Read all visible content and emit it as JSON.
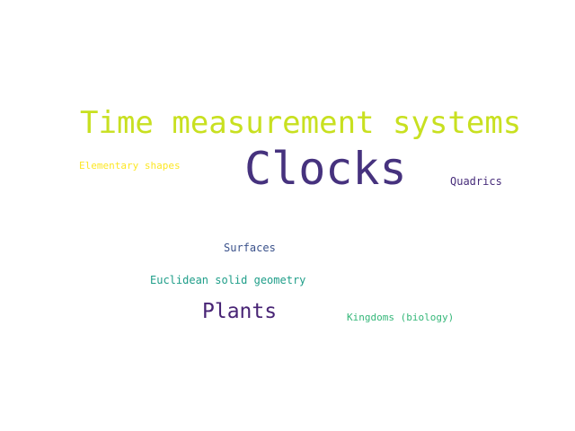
{
  "words": [
    {
      "text": "Time measurement systems",
      "color": "#c8e020"
    },
    {
      "text": "Clocks",
      "color": "#46327e"
    },
    {
      "text": "Elementary shapes",
      "color": "#fde725"
    },
    {
      "text": "Quadrics",
      "color": "#472c7a"
    },
    {
      "text": "Surfaces",
      "color": "#3b528b"
    },
    {
      "text": "Euclidean solid geometry",
      "color": "#1f9e89"
    },
    {
      "text": "Plants",
      "color": "#482475"
    },
    {
      "text": "Kingdoms (biology)",
      "color": "#35b779"
    }
  ]
}
